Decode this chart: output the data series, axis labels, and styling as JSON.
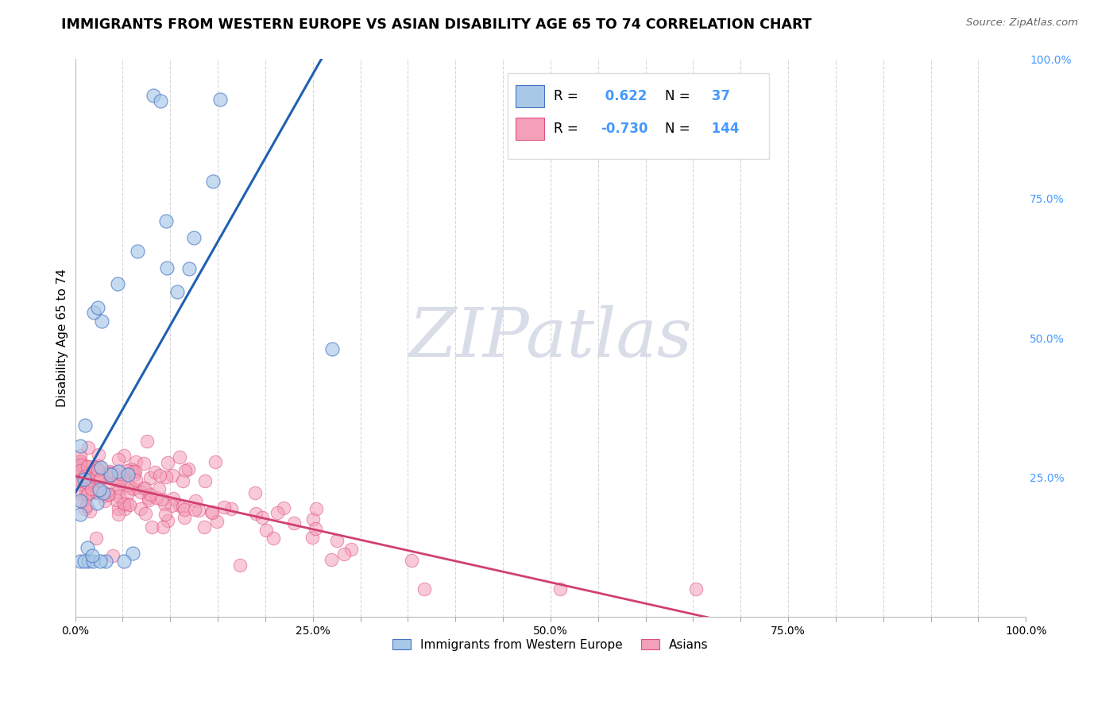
{
  "title": "IMMIGRANTS FROM WESTERN EUROPE VS ASIAN DISABILITY AGE 65 TO 74 CORRELATION CHART",
  "source_text": "Source: ZipAtlas.com",
  "ylabel": "Disability Age 65 to 74",
  "xlim": [
    0,
    1.0
  ],
  "ylim": [
    0,
    1.0
  ],
  "xtick_labels": [
    "0.0%",
    "",
    "",
    "",
    "",
    "25.0%",
    "",
    "",
    "",
    "",
    "50.0%",
    "",
    "",
    "",
    "",
    "75.0%",
    "",
    "",
    "",
    "",
    "100.0%"
  ],
  "xtick_positions": [
    0.0,
    0.05,
    0.1,
    0.15,
    0.2,
    0.25,
    0.3,
    0.35,
    0.4,
    0.45,
    0.5,
    0.55,
    0.6,
    0.65,
    0.7,
    0.75,
    0.8,
    0.85,
    0.9,
    0.95,
    1.0
  ],
  "ytick_labels_right": [
    "25.0%",
    "50.0%",
    "75.0%",
    "100.0%"
  ],
  "ytick_positions_right": [
    0.25,
    0.5,
    0.75,
    1.0
  ],
  "legend_blue_label": "Immigrants from Western Europe",
  "legend_pink_label": "Asians",
  "r_blue": 0.622,
  "n_blue": 37,
  "r_pink": -0.73,
  "n_pink": 144,
  "blue_scatter_color": "#a8c8e8",
  "blue_edge_color": "#4472c4",
  "pink_scatter_color": "#f4a0b8",
  "pink_edge_color": "#e05080",
  "blue_line_color": "#2060b0",
  "pink_line_color": "#d04070",
  "watermark_color": "#d8dde8",
  "watermark_text": "ZIPatlas",
  "grid_color": "#cccccc",
  "right_tick_color": "#4499ff"
}
